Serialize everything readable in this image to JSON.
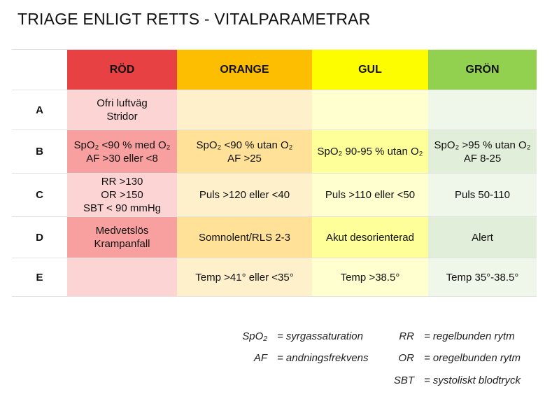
{
  "title": "TRIAGE ENLIGT RETTS - VITALPARAMETRAR",
  "colors": {
    "red_header": "#e84143",
    "orange_header": "#fdbd00",
    "yellow_header": "#fdfd00",
    "green_header": "#92d050",
    "red_light": "#fdd4d4",
    "red_dark": "#f8a0a0",
    "orange_light": "#fff0cc",
    "orange_dark": "#ffe197",
    "yellow_light": "#ffffcf",
    "yellow_dark": "#ffff99",
    "green_light": "#eff6ea",
    "green_dark": "#e1eed9"
  },
  "columns": [
    {
      "label": "RÖD"
    },
    {
      "label": "ORANGE"
    },
    {
      "label": "GUL"
    },
    {
      "label": "GRÖN"
    }
  ],
  "rows": [
    {
      "label": "A",
      "cells": [
        [
          "Ofri luftväg",
          "Stridor"
        ],
        [],
        [],
        []
      ]
    },
    {
      "label": "B",
      "cells": [
        [
          "SpO₂ <90 % med O₂",
          "AF >30 eller <8"
        ],
        [
          "SpO₂ <90 % utan O₂",
          "AF >25"
        ],
        [
          "SpO₂ 90-95 % utan O₂"
        ],
        [
          "SpO₂ >95 % utan O₂",
          "AF 8-25"
        ]
      ]
    },
    {
      "label": "C",
      "cells": [
        [
          "RR >130",
          "OR >150",
          "SBT < 90 mmHg"
        ],
        [
          "Puls >120 eller <40"
        ],
        [
          "Puls >110 eller <50"
        ],
        [
          "Puls 50-110"
        ]
      ]
    },
    {
      "label": "D",
      "cells": [
        [
          "Medvetslös",
          "Krampanfall"
        ],
        [
          "Somnolent/RLS 2-3"
        ],
        [
          "Akut desorienterad"
        ],
        [
          "Alert"
        ]
      ]
    },
    {
      "label": "E",
      "cells": [
        [],
        [
          "Temp >41° eller <35°"
        ],
        [
          "Temp >38.5°"
        ],
        [
          "Temp 35°-38.5°"
        ]
      ]
    }
  ],
  "legend": [
    {
      "abbr": "SpO₂",
      "definition": "= syrgassaturation"
    },
    {
      "abbr": "AF",
      "definition": "= andningsfrekvens"
    },
    {
      "abbr": "RR",
      "definition": "= regelbunden rytm"
    },
    {
      "abbr": "OR",
      "definition": "= oregelbunden rytm"
    },
    {
      "abbr": "SBT",
      "definition": "= systoliskt blodtryck"
    }
  ]
}
